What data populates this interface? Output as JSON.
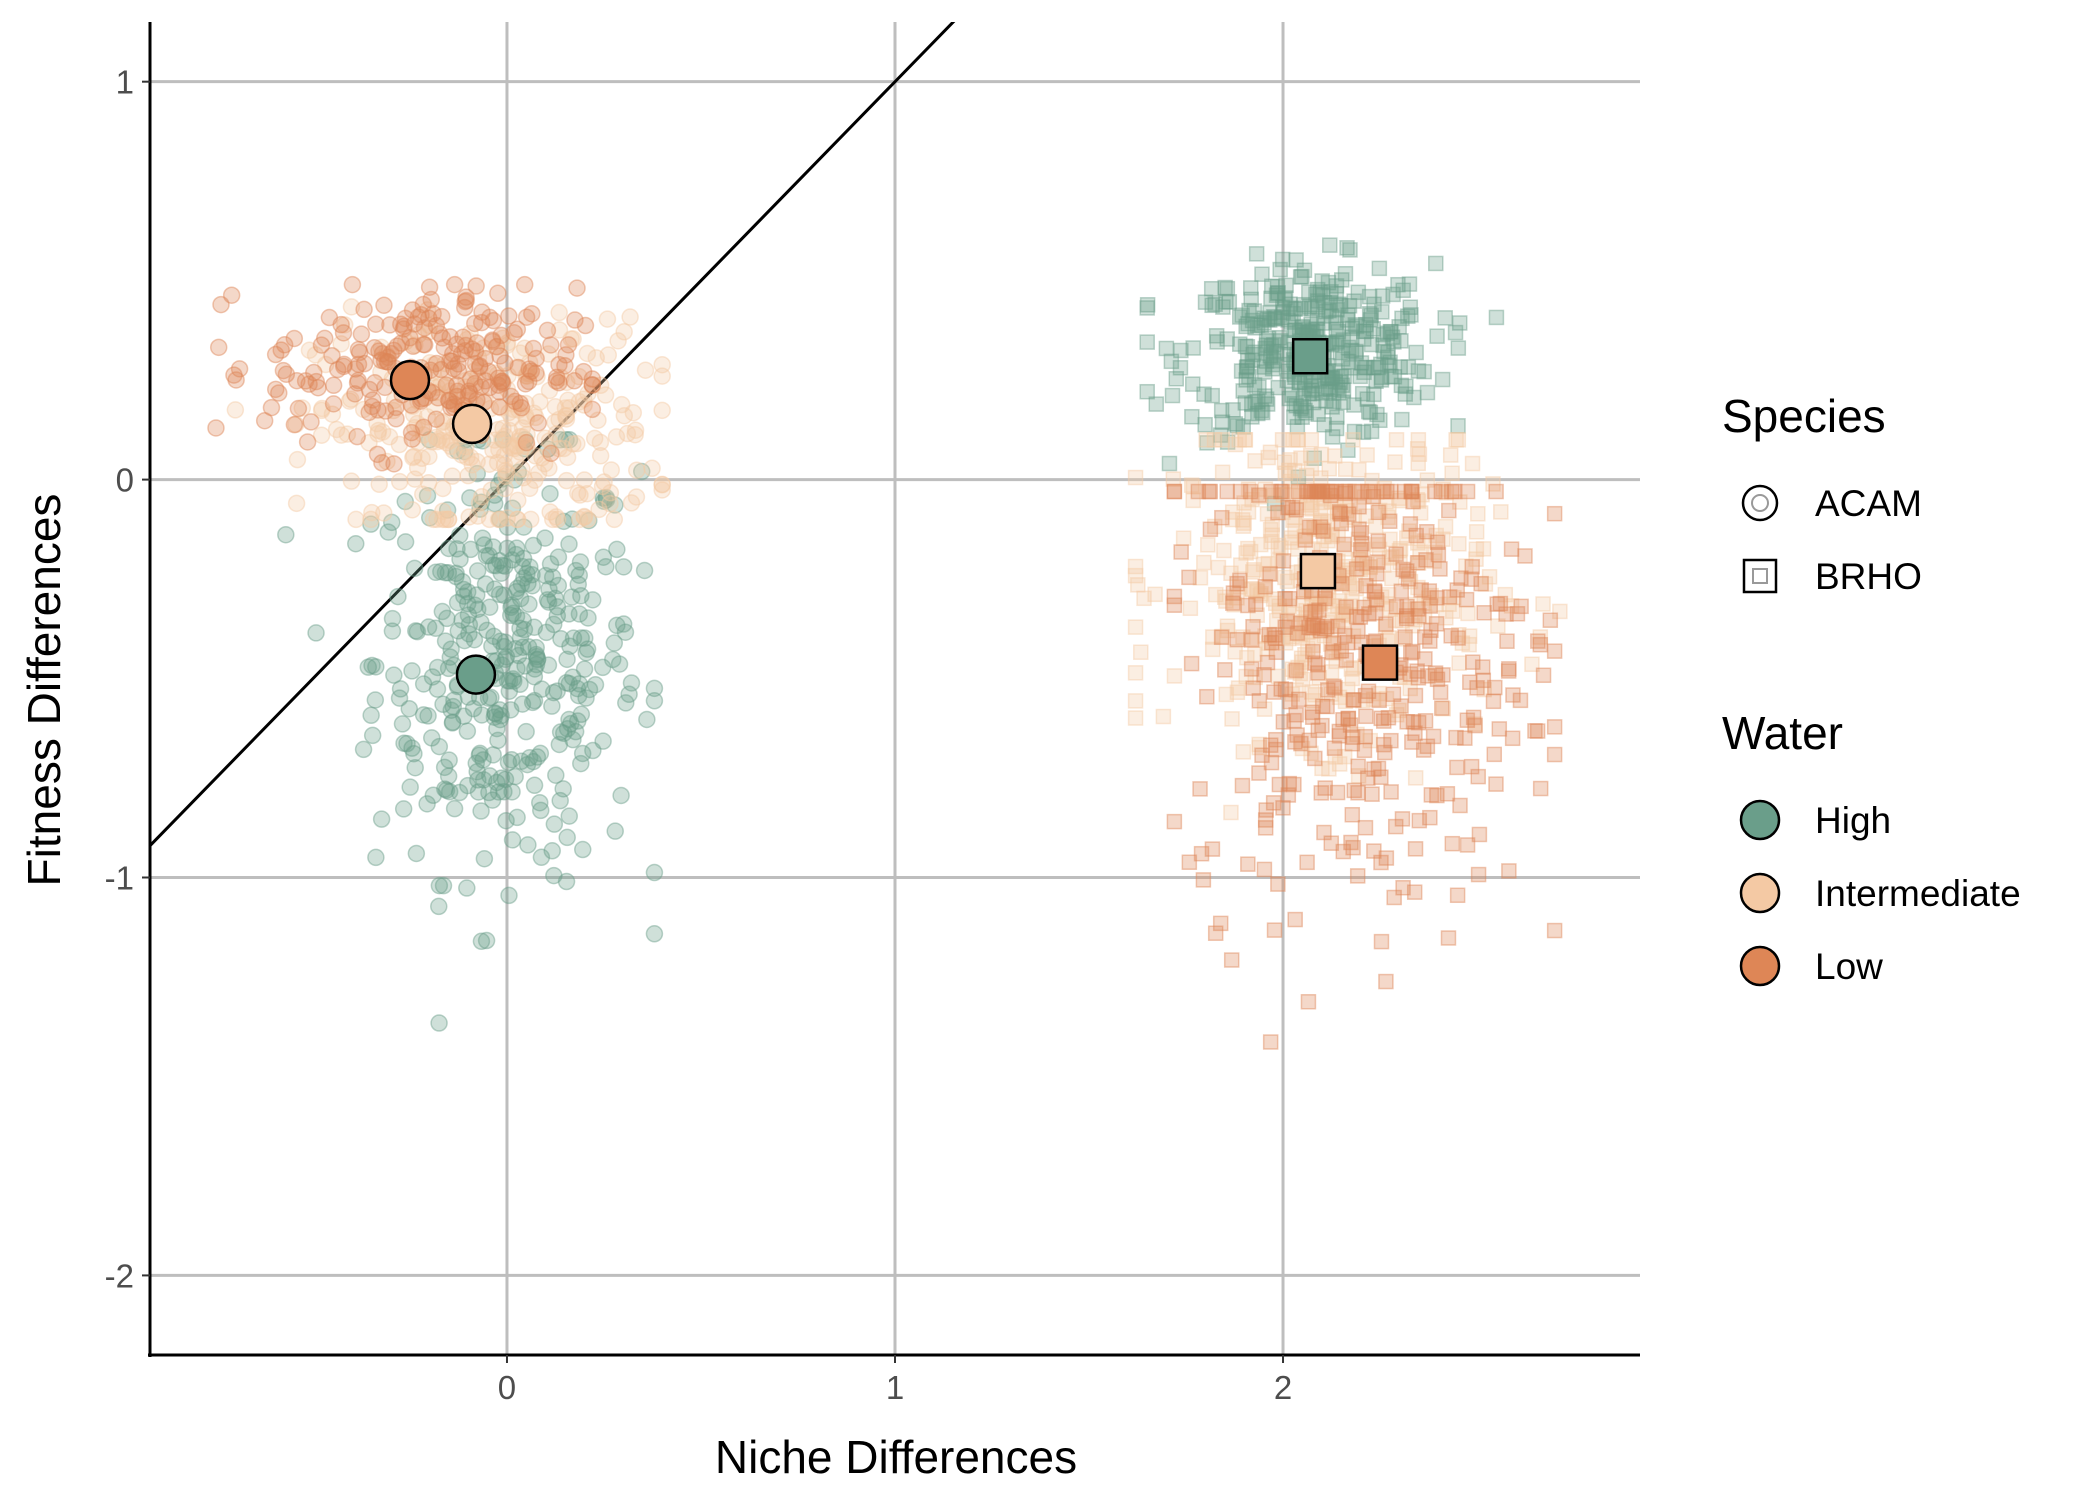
{
  "chart_data": {
    "type": "scatter",
    "title": "",
    "xlabel": "Niche Differences",
    "ylabel": "Fitness Differences",
    "xlim": [
      -0.92,
      2.92
    ],
    "ylim": [
      -2.2,
      1.15
    ],
    "xticks": [
      0,
      1,
      2
    ],
    "yticks": [
      1,
      0,
      -1,
      -2
    ],
    "xtick_labels": [
      "0",
      "1",
      "2"
    ],
    "ytick_labels": [
      "1",
      "0",
      "-1",
      "-2"
    ],
    "grid_major": true,
    "reference_line": {
      "slope": 1,
      "intercept": 0
    },
    "colors": {
      "High": "#6A9E8A",
      "Intermediate": "#F4C9A4",
      "Low": "#DE8656"
    },
    "legend_placement": "right",
    "legends": [
      {
        "title": "Species",
        "entries": [
          {
            "label": "ACAM",
            "shape": "circle"
          },
          {
            "label": "BRHO",
            "shape": "square"
          }
        ]
      },
      {
        "title": "Water",
        "entries": [
          {
            "label": "High",
            "color": "#6A9E8A"
          },
          {
            "label": "Intermediate",
            "color": "#F4C9A4"
          },
          {
            "label": "Low",
            "color": "#DE8656"
          }
        ]
      }
    ],
    "means": [
      {
        "species": "ACAM",
        "water": "Low",
        "x": -0.25,
        "y": 0.25
      },
      {
        "species": "ACAM",
        "water": "Intermediate",
        "x": -0.09,
        "y": 0.14
      },
      {
        "species": "ACAM",
        "water": "High",
        "x": -0.08,
        "y": -0.49
      },
      {
        "species": "BRHO",
        "water": "High",
        "x": 2.07,
        "y": 0.31
      },
      {
        "species": "BRHO",
        "water": "Intermediate",
        "x": 2.09,
        "y": -0.23
      },
      {
        "species": "BRHO",
        "water": "Low",
        "x": 2.25,
        "y": -0.46
      }
    ],
    "clouds": [
      {
        "species": "ACAM",
        "water": "Low",
        "n": 230,
        "x_mean": -0.22,
        "x_sd": 0.2,
        "y_mean": 0.28,
        "y_sd": 0.1,
        "x_range": [
          -0.75,
          0.22
        ],
        "y_range": [
          0.02,
          0.49
        ]
      },
      {
        "species": "ACAM",
        "water": "Intermediate",
        "n": 300,
        "x_mean": -0.05,
        "x_sd": 0.22,
        "y_mean": 0.12,
        "y_sd": 0.14,
        "x_range": [
          -0.7,
          0.4
        ],
        "y_range": [
          -0.1,
          0.46
        ]
      },
      {
        "species": "ACAM",
        "water": "High",
        "n": 380,
        "x_mean": 0.0,
        "x_sd": 0.17,
        "y_mean": -0.45,
        "y_sd": 0.27,
        "x_range": [
          -0.57,
          0.38
        ],
        "y_range": [
          -1.68,
          0.1
        ]
      },
      {
        "species": "BRHO",
        "water": "High",
        "n": 380,
        "x_mean": 2.07,
        "x_sd": 0.16,
        "y_mean": 0.32,
        "y_sd": 0.11,
        "x_range": [
          1.65,
          2.55
        ],
        "y_range": [
          -0.06,
          0.63
        ]
      },
      {
        "species": "BRHO",
        "water": "Intermediate",
        "n": 420,
        "x_mean": 2.12,
        "x_sd": 0.2,
        "y_mean": -0.25,
        "y_sd": 0.2,
        "x_range": [
          1.62,
          2.76
        ],
        "y_range": [
          -1.3,
          0.1
        ]
      },
      {
        "species": "BRHO",
        "water": "Low",
        "n": 400,
        "x_mean": 2.2,
        "x_sd": 0.22,
        "y_mean": -0.42,
        "y_sd": 0.33,
        "x_range": [
          1.72,
          2.7
        ],
        "y_range": [
          -2.05,
          -0.03
        ]
      }
    ]
  }
}
